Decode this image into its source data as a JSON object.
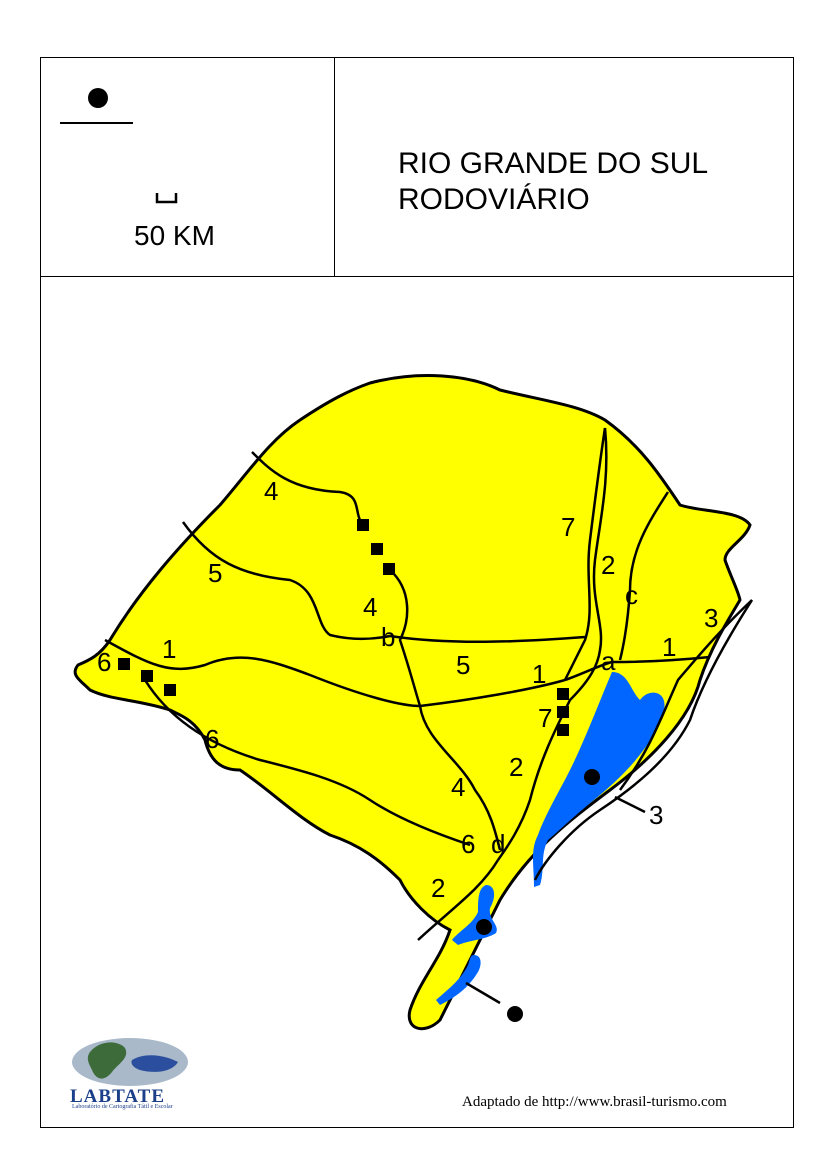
{
  "title": {
    "line1": "RIO GRANDE DO SUL",
    "line2": "RODOVIÁRIO"
  },
  "legend": {
    "scale_label": "50 KM"
  },
  "credit": "Adaptado de http://www.brasil-turismo.com",
  "logo": {
    "name": "LABTATE",
    "subtitle": "Laboratório de Cartografia Tátil e Escolar"
  },
  "map_labels": {
    "road_4_a": "4",
    "road_5_a": "5",
    "road_4_b": "4",
    "point_b": "b",
    "road_6_a": "6",
    "road_1_a": "1",
    "road_5_b": "5",
    "road_1_b": "1",
    "road_7_a": "7",
    "road_2_a": "2",
    "point_c": "c",
    "road_3_a": "3",
    "point_a": "a",
    "road_1_c": "1",
    "road_7_b": "7",
    "road_6_b": "6",
    "road_2_b": "2",
    "road_4_c": "4",
    "road_6_c": "6",
    "point_d": "d",
    "road_3_b": "3",
    "road_2_c": "2"
  },
  "colors": {
    "land": "#ffff00",
    "water": "#0066ff",
    "outline": "#000000"
  }
}
